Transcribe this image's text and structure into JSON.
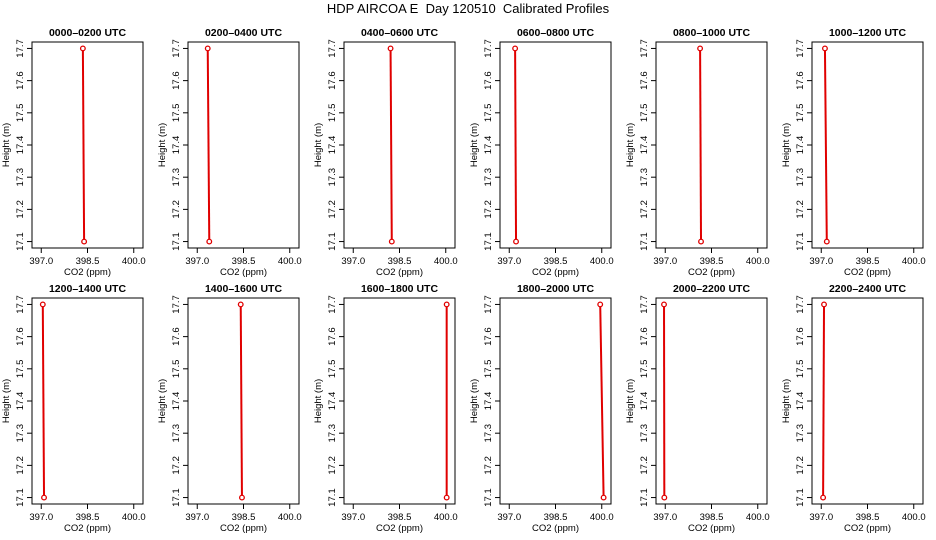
{
  "title": "HDP AIRCOA E  Day 120510  Calibrated Profiles",
  "shared_axes": {
    "xlabel": "CO2 (ppm)",
    "ylabel": "Height (m)",
    "xlim": [
      396.7,
      400.3
    ],
    "ylim": [
      17.08,
      17.72
    ],
    "xticks": [
      "397.0",
      "398.5",
      "400.0"
    ],
    "yticks": [
      "17.1",
      "17.2",
      "17.3",
      "17.4",
      "17.5",
      "17.6",
      "17.7"
    ],
    "line_color": "#e00000",
    "marker_color": "#e00000"
  },
  "chart_data": [
    {
      "type": "line",
      "title": "0000–0200 UTC",
      "x": [
        398.35,
        398.39
      ],
      "y": [
        17.7,
        17.1
      ]
    },
    {
      "type": "line",
      "title": "0200–0400 UTC",
      "x": [
        397.34,
        397.39
      ],
      "y": [
        17.7,
        17.1
      ]
    },
    {
      "type": "line",
      "title": "0400–0600 UTC",
      "x": [
        398.21,
        398.25
      ],
      "y": [
        17.7,
        17.1
      ]
    },
    {
      "type": "line",
      "title": "0600–0800 UTC",
      "x": [
        397.19,
        397.22
      ],
      "y": [
        17.7,
        17.1
      ]
    },
    {
      "type": "line",
      "title": "0800–1000 UTC",
      "x": [
        398.13,
        398.16
      ],
      "y": [
        17.7,
        17.1
      ]
    },
    {
      "type": "line",
      "title": "1000–1200 UTC",
      "x": [
        397.12,
        397.18
      ],
      "y": [
        17.7,
        17.1
      ]
    },
    {
      "type": "line",
      "title": "1200–1400 UTC",
      "x": [
        397.05,
        397.09
      ],
      "y": [
        17.7,
        17.1
      ]
    },
    {
      "type": "line",
      "title": "1400–1600 UTC",
      "x": [
        398.41,
        398.45
      ],
      "y": [
        17.7,
        17.1
      ]
    },
    {
      "type": "line",
      "title": "1600–1800 UTC",
      "x": [
        400.03,
        400.03
      ],
      "y": [
        17.7,
        17.1
      ]
    },
    {
      "type": "line",
      "title": "1800–2000 UTC",
      "x": [
        399.95,
        400.06
      ],
      "y": [
        17.7,
        17.1
      ]
    },
    {
      "type": "line",
      "title": "2000–2200 UTC",
      "x": [
        396.96,
        396.97
      ],
      "y": [
        17.7,
        17.1
      ]
    },
    {
      "type": "line",
      "title": "2200–2400 UTC",
      "x": [
        397.09,
        397.06
      ],
      "y": [
        17.7,
        17.1
      ]
    }
  ]
}
